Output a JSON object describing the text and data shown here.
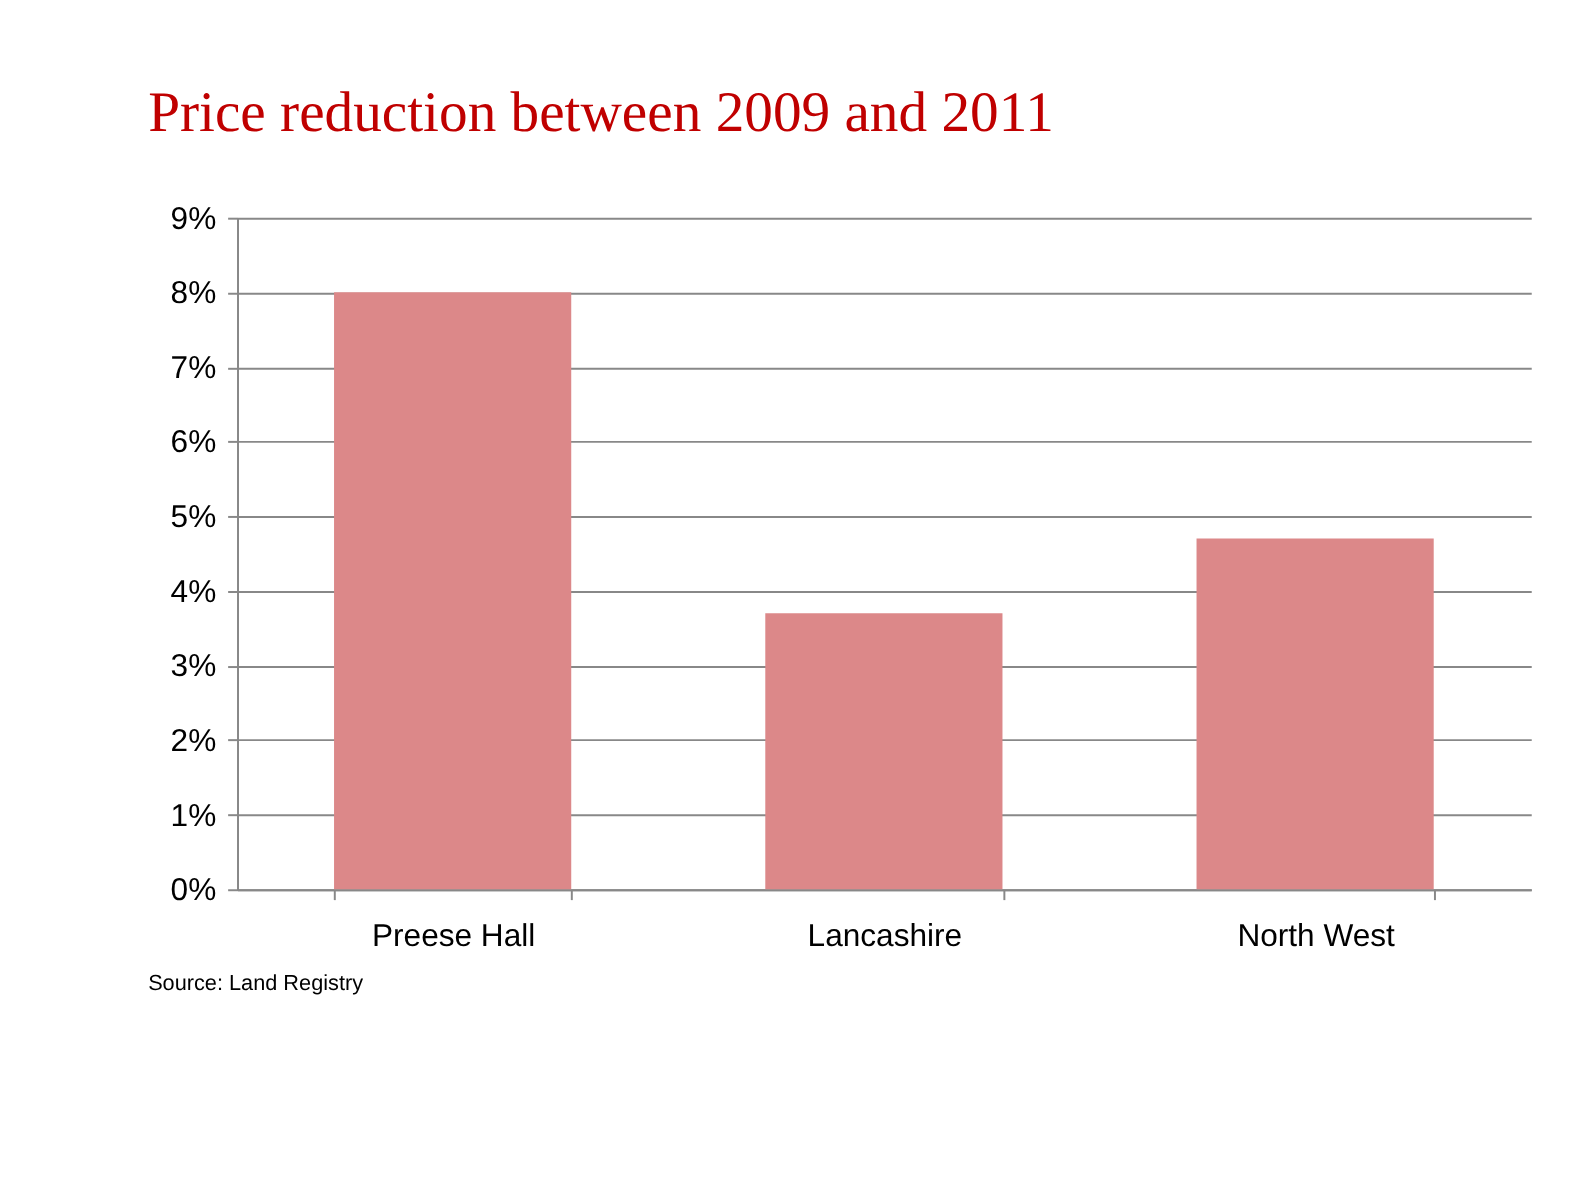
{
  "chart_data": {
    "type": "bar",
    "title": "Price reduction between 2009 and 2011",
    "categories": [
      "Preese Hall",
      "Lancashire",
      "North West"
    ],
    "values": [
      8.0,
      3.7,
      4.7
    ],
    "color": "#dc8889",
    "ylim": [
      0,
      9
    ],
    "yticks": [
      {
        "value": 0,
        "label": "0%"
      },
      {
        "value": 1,
        "label": "1%"
      },
      {
        "value": 2,
        "label": "2%"
      },
      {
        "value": 3,
        "label": "3%"
      },
      {
        "value": 4,
        "label": "4%"
      },
      {
        "value": 5,
        "label": "5%"
      },
      {
        "value": 6,
        "label": "6%"
      },
      {
        "value": 7,
        "label": "7%"
      },
      {
        "value": 8,
        "label": "8%"
      },
      {
        "value": 9,
        "label": "9%"
      }
    ],
    "grid": "y",
    "annotations": [
      "Source: Land Registry"
    ]
  }
}
